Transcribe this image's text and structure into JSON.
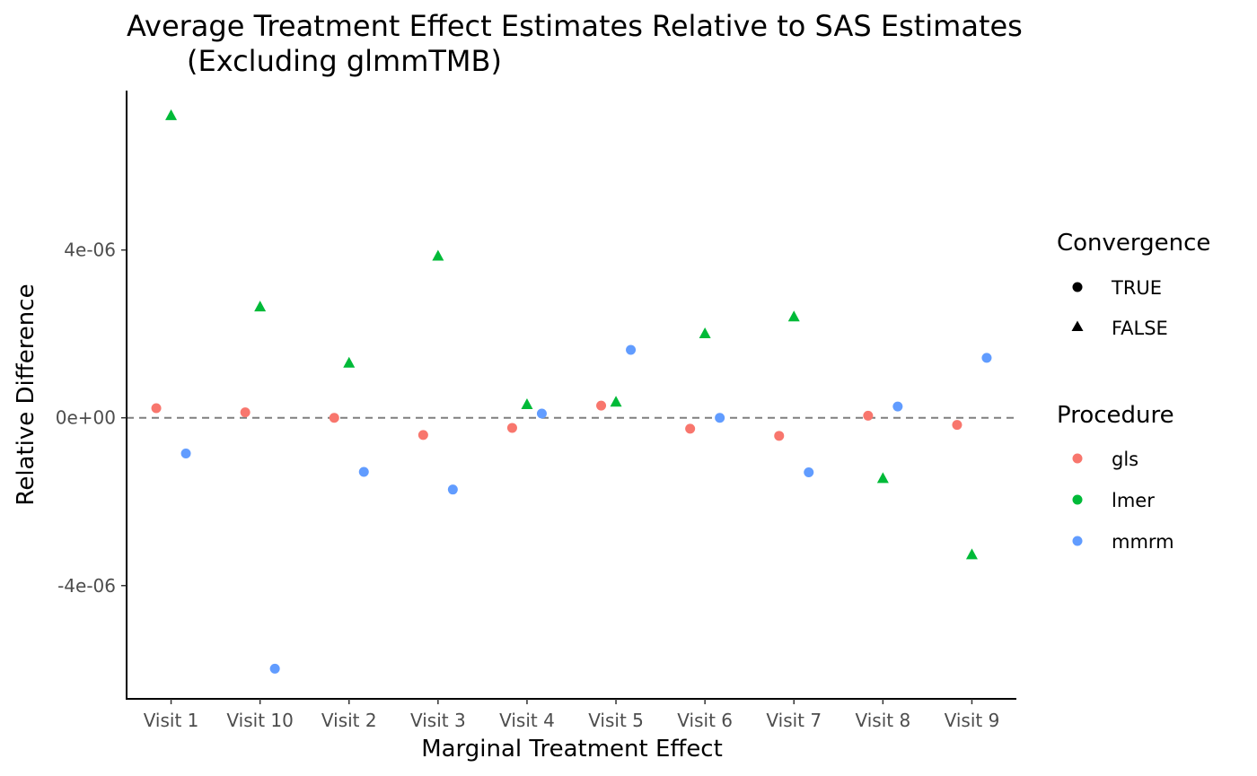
{
  "chart_data": {
    "type": "scatter",
    "title_line1": "Average Treatment Effect Estimates Relative to SAS Estimates",
    "title_line2": "(Excluding glmmTMB)",
    "xlabel": "Marginal Treatment Effect",
    "ylabel": "Relative Difference",
    "categories": [
      "Visit 1",
      "Visit 10",
      "Visit 2",
      "Visit 3",
      "Visit 4",
      "Visit 5",
      "Visit 6",
      "Visit 7",
      "Visit 8",
      "Visit 9"
    ],
    "ylim": [
      -6.7e-06,
      7.8e-06
    ],
    "yticks": [
      {
        "value": 4e-06,
        "label": "4e-06"
      },
      {
        "value": 0,
        "label": "0e+00"
      },
      {
        "value": -4e-06,
        "label": "-4e-06"
      }
    ],
    "reference_line": {
      "y": 0,
      "style": "dashed",
      "color": "#7f7f7f"
    },
    "grid": false,
    "series": [
      {
        "name": "gls",
        "color": "#F8766D",
        "dodge": -1,
        "values": [
          2.3e-07,
          1.3e-07,
          0.0,
          -4.1e-07,
          -2.4e-07,
          2.9e-07,
          -2.6e-07,
          -4.3e-07,
          5e-08,
          -1.7e-07
        ],
        "converged": [
          true,
          true,
          true,
          true,
          true,
          true,
          true,
          true,
          true,
          true
        ]
      },
      {
        "name": "lmer",
        "color": "#00BA38",
        "dodge": 0,
        "values": [
          7.2e-06,
          2.64e-06,
          1.3e-06,
          3.85e-06,
          3.1e-07,
          3.7e-07,
          2e-06,
          2.4e-06,
          -1.45e-06,
          -3.27e-06
        ],
        "converged": [
          false,
          false,
          false,
          false,
          false,
          false,
          false,
          false,
          false,
          false
        ]
      },
      {
        "name": "mmrm",
        "color": "#619CFF",
        "dodge": 1,
        "values": [
          -8.5e-07,
          -5.98e-06,
          -1.29e-06,
          -1.71e-06,
          1e-07,
          1.62e-06,
          0.0,
          -1.3e-06,
          2.7e-07,
          1.43e-06
        ],
        "converged": [
          true,
          true,
          true,
          true,
          true,
          true,
          true,
          true,
          true,
          true
        ]
      }
    ],
    "legend": {
      "placement": "right",
      "convergence": {
        "title": "Convergence",
        "items": [
          "TRUE",
          "FALSE"
        ]
      },
      "procedure": {
        "title": "Procedure",
        "items": [
          "gls",
          "lmer",
          "mmrm"
        ]
      }
    }
  }
}
